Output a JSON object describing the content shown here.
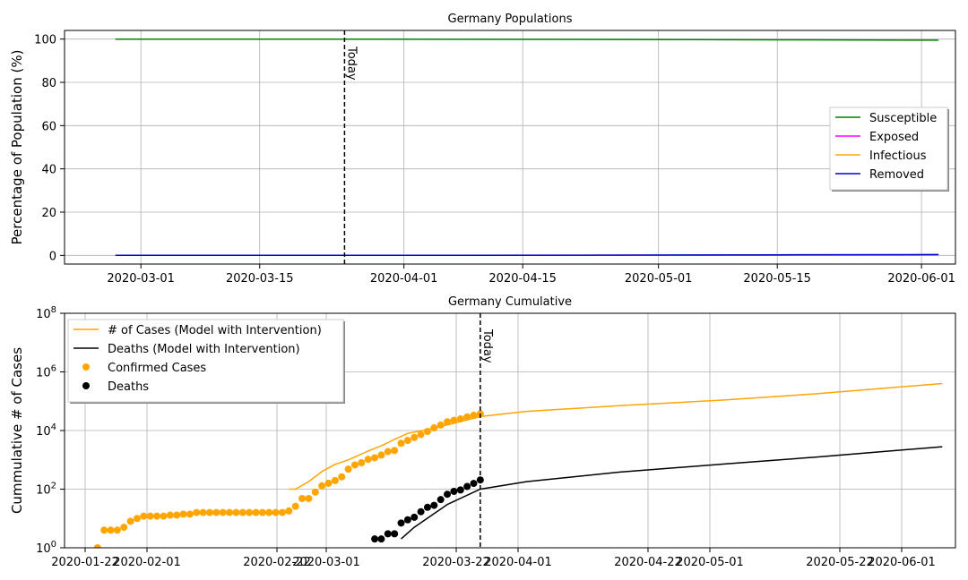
{
  "chart_data": [
    {
      "type": "line",
      "title": "Germany Populations",
      "xlabel": "",
      "ylabel": "Percentage of Population (%)",
      "xlim": [
        "2020-02-21",
        "2020-06-05"
      ],
      "ylim": [
        -4,
        104
      ],
      "x_ticks": [
        "2020-03-01",
        "2020-03-15",
        "2020-04-01",
        "2020-04-15",
        "2020-05-01",
        "2020-05-15",
        "2020-06-01"
      ],
      "y_ticks": [
        0,
        20,
        40,
        60,
        80,
        100
      ],
      "grid": true,
      "legend_position": "right",
      "today": {
        "date": "2020-03-25",
        "label": "Today"
      },
      "series": [
        {
          "name": "Susceptible",
          "color": "#008000",
          "x": [
            "2020-02-27",
            "2020-03-25",
            "2020-04-20",
            "2020-05-15",
            "2020-06-03"
          ],
          "y": [
            100,
            99.95,
            99.85,
            99.65,
            99.5
          ]
        },
        {
          "name": "Exposed",
          "color": "#ff00ff",
          "x": [
            "2020-02-27",
            "2020-03-25",
            "2020-04-20",
            "2020-05-15",
            "2020-06-03"
          ],
          "y": [
            0,
            0.01,
            0.02,
            0.03,
            0.04
          ]
        },
        {
          "name": "Infectious",
          "color": "#ffa500",
          "x": [
            "2020-02-27",
            "2020-03-25",
            "2020-04-20",
            "2020-05-15",
            "2020-06-03"
          ],
          "y": [
            0,
            0.02,
            0.05,
            0.08,
            0.1
          ]
        },
        {
          "name": "Removed",
          "color": "#0000cd",
          "x": [
            "2020-02-27",
            "2020-03-25",
            "2020-04-20",
            "2020-05-15",
            "2020-06-03"
          ],
          "y": [
            0,
            0.02,
            0.1,
            0.25,
            0.4
          ]
        }
      ]
    },
    {
      "type": "line",
      "title": "Germany Cumulative",
      "xlabel": "",
      "ylabel": "Cummulative # of Cases",
      "yscale": "log",
      "xlim": [
        "2020-01-22",
        "2020-06-05"
      ],
      "ylim": [
        1,
        100000000
      ],
      "x_tick_labels": [
        "2020-01-22",
        "2020-02-01",
        "2020-02-22",
        "2020-03-01",
        "2020-03-22",
        "2020-04-01",
        "2020-04-22",
        "2020-05-01",
        "2020-05-22",
        "2020-06-01"
      ],
      "y_ticks": [
        1,
        100,
        10000,
        1000000,
        100000000
      ],
      "y_tick_labels": [
        {
          "base": "10",
          "exp": "0"
        },
        {
          "base": "10",
          "exp": "2"
        },
        {
          "base": "10",
          "exp": "4"
        },
        {
          "base": "10",
          "exp": "6"
        },
        {
          "base": "10",
          "exp": "8"
        }
      ],
      "grid": true,
      "legend_position": "upper-left",
      "today": {
        "date": "2020-03-25",
        "label": "Today"
      },
      "series": [
        {
          "name": "# of Cases (Model with Intervention)",
          "style": "line",
          "color": "#ffa500",
          "x": [
            "2020-02-25",
            "2020-02-26",
            "2020-02-28",
            "2020-03-01",
            "2020-03-03",
            "2020-03-05",
            "2020-03-08",
            "2020-03-10",
            "2020-03-12",
            "2020-03-14",
            "2020-03-18",
            "2020-03-25",
            "2020-04-01",
            "2020-04-15",
            "2020-05-01",
            "2020-05-15",
            "2020-06-03"
          ],
          "y": [
            100,
            100,
            180,
            400,
            700,
            1000,
            2000,
            3000,
            5000,
            8000,
            12000,
            30000,
            45000,
            70000,
            110000,
            180000,
            400000
          ]
        },
        {
          "name": "Deaths (Model with Intervention)",
          "style": "line",
          "color": "#000000",
          "x": [
            "2020-03-13",
            "2020-03-15",
            "2020-03-20",
            "2020-03-25",
            "2020-04-01",
            "2020-04-15",
            "2020-05-01",
            "2020-05-15",
            "2020-06-03"
          ],
          "y": [
            2,
            5,
            30,
            100,
            180,
            380,
            720,
            1250,
            2800
          ]
        },
        {
          "name": "Confirmed Cases",
          "style": "marker",
          "color": "#ffa500",
          "x": [
            "2020-01-27",
            "2020-01-28",
            "2020-01-29",
            "2020-01-30",
            "2020-01-31",
            "2020-02-01",
            "2020-02-02",
            "2020-02-03",
            "2020-02-04",
            "2020-02-05",
            "2020-02-06",
            "2020-02-07",
            "2020-02-08",
            "2020-02-09",
            "2020-02-10",
            "2020-02-11",
            "2020-02-12",
            "2020-02-13",
            "2020-02-14",
            "2020-02-15",
            "2020-02-16",
            "2020-02-17",
            "2020-02-18",
            "2020-02-19",
            "2020-02-20",
            "2020-02-21",
            "2020-02-22",
            "2020-02-23",
            "2020-02-24",
            "2020-02-25",
            "2020-02-26",
            "2020-02-27",
            "2020-02-28",
            "2020-02-29",
            "2020-03-01",
            "2020-03-02",
            "2020-03-03",
            "2020-03-04",
            "2020-03-05",
            "2020-03-06",
            "2020-03-07",
            "2020-03-08",
            "2020-03-09",
            "2020-03-10",
            "2020-03-11",
            "2020-03-12",
            "2020-03-13",
            "2020-03-14",
            "2020-03-15",
            "2020-03-16",
            "2020-03-17",
            "2020-03-18",
            "2020-03-19",
            "2020-03-20",
            "2020-03-21",
            "2020-03-22",
            "2020-03-23",
            "2020-03-24",
            "2020-03-25"
          ],
          "y": [
            1,
            4,
            4,
            4,
            5,
            8,
            10,
            12,
            12,
            12,
            12,
            13,
            13,
            14,
            14,
            16,
            16,
            16,
            16,
            16,
            16,
            16,
            16,
            16,
            16,
            16,
            16,
            16,
            16,
            18,
            26,
            48,
            48,
            79,
            130,
            159,
            196,
            262,
            482,
            670,
            799,
            1040,
            1176,
            1457,
            1908,
            2078,
            3675,
            4585,
            5795,
            7272,
            9257,
            12327,
            15320,
            19848,
            22213,
            24873,
            29056,
            32986,
            37323
          ]
        },
        {
          "name": "Deaths",
          "style": "marker",
          "color": "#000000",
          "x": [
            "2020-03-09",
            "2020-03-10",
            "2020-03-11",
            "2020-03-12",
            "2020-03-13",
            "2020-03-14",
            "2020-03-15",
            "2020-03-16",
            "2020-03-17",
            "2020-03-18",
            "2020-03-19",
            "2020-03-20",
            "2020-03-21",
            "2020-03-22",
            "2020-03-23",
            "2020-03-24",
            "2020-03-25"
          ],
          "y": [
            2,
            2,
            3,
            3,
            7,
            9,
            11,
            17,
            24,
            28,
            44,
            67,
            84,
            94,
            123,
            157,
            206
          ]
        }
      ]
    }
  ]
}
